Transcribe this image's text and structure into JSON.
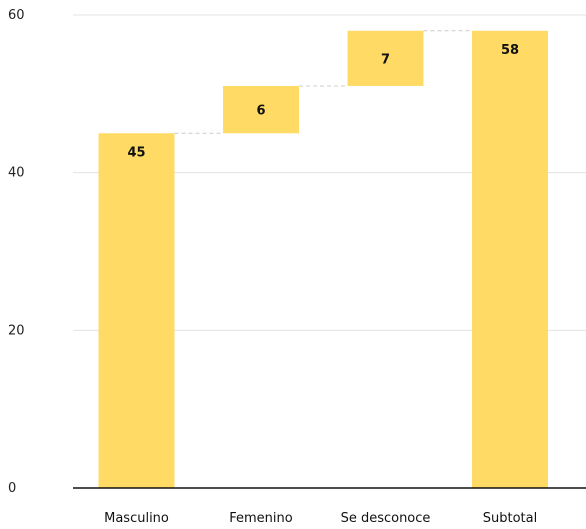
{
  "chart_data": {
    "type": "bar",
    "subtype": "waterfall",
    "title": "",
    "xlabel": "",
    "ylabel": "",
    "categories": [
      "Masculino",
      "Femenino",
      "Se desconoce",
      "Subtotal"
    ],
    "values": [
      45,
      6,
      7,
      58
    ],
    "bases": [
      0,
      45,
      51,
      0
    ],
    "labels": [
      "45",
      "6",
      "7",
      "58"
    ],
    "ylim": [
      0,
      60
    ],
    "yticks": [
      0,
      20,
      40,
      60
    ],
    "ytick_labels": [
      "0",
      "20",
      "40",
      "60"
    ],
    "grid": true,
    "connectors": "dashed",
    "legend": "none",
    "colors": {
      "bar": "#FFDB66",
      "grid": "#e3e3e3",
      "axis": "#111111",
      "connector": "#cccccc",
      "text": "#111111"
    }
  }
}
